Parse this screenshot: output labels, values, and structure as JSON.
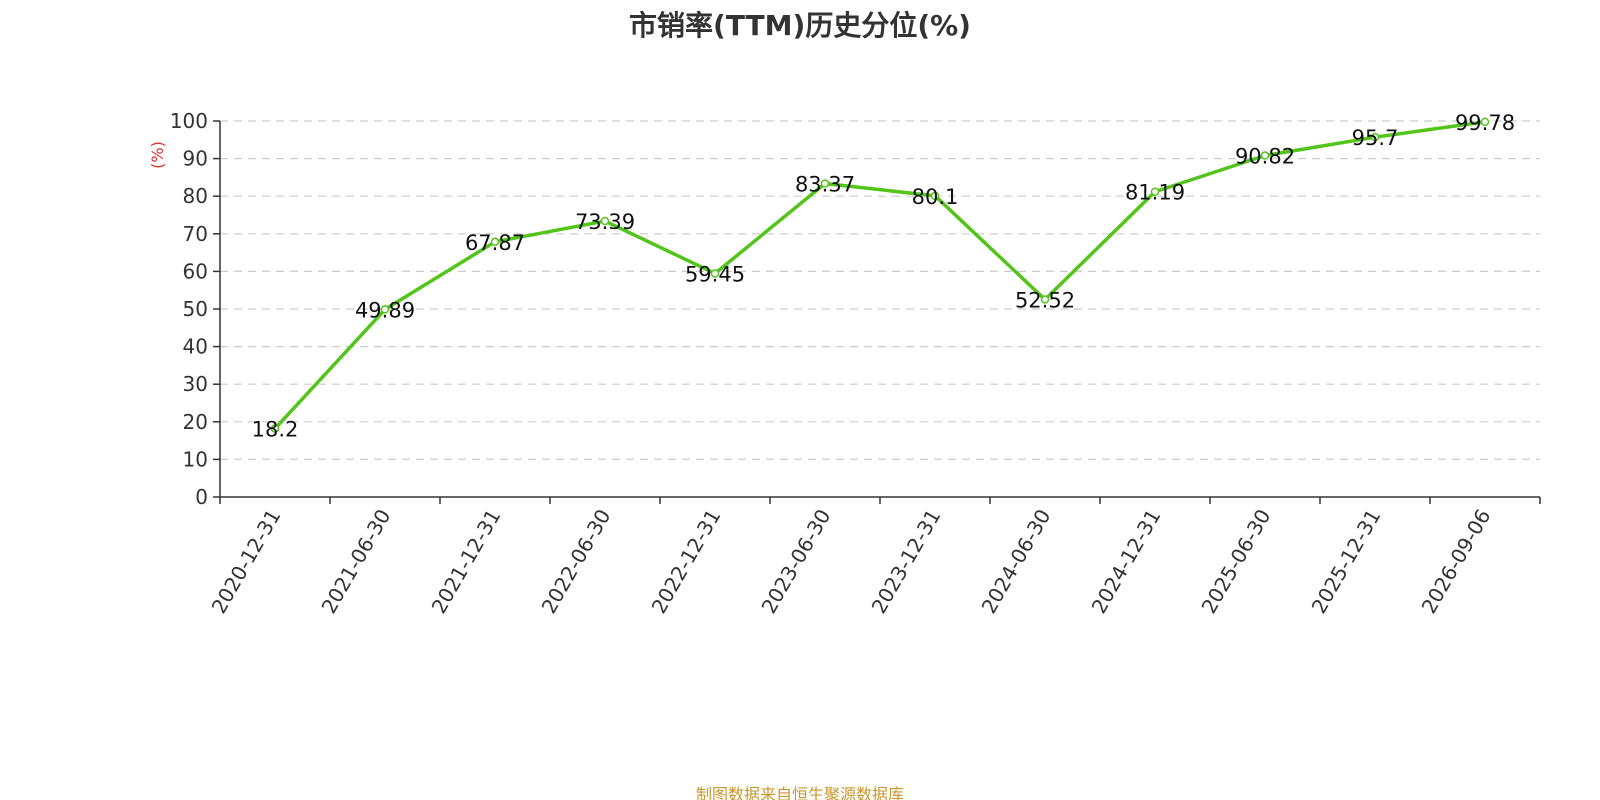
{
  "title": "市销率(TTM)历史分位(%)",
  "footer": "制图数据来自恒生聚源数据库",
  "chart_data": {
    "type": "line",
    "title": "市销率(TTM)历史分位(%)",
    "ylabel": "(%)",
    "xlabel": "",
    "ylim": [
      0,
      100
    ],
    "yticks": [
      0,
      10,
      20,
      30,
      40,
      50,
      60,
      70,
      80,
      90,
      100
    ],
    "grid": true,
    "line_color": "#52c41a",
    "x": [
      "2020-12-31",
      "2021-06-30",
      "2021-12-31",
      "2022-06-30",
      "2022-12-31",
      "2023-06-30",
      "2023-12-31",
      "2024-06-30",
      "2024-12-31",
      "2025-06-30",
      "2025-12-31",
      "2026-09-06"
    ],
    "series": [
      {
        "values": [
          18.2,
          49.89,
          67.87,
          73.39,
          59.45,
          83.37,
          80.1,
          52.52,
          81.19,
          90.82,
          95.7,
          99.78
        ]
      }
    ]
  }
}
